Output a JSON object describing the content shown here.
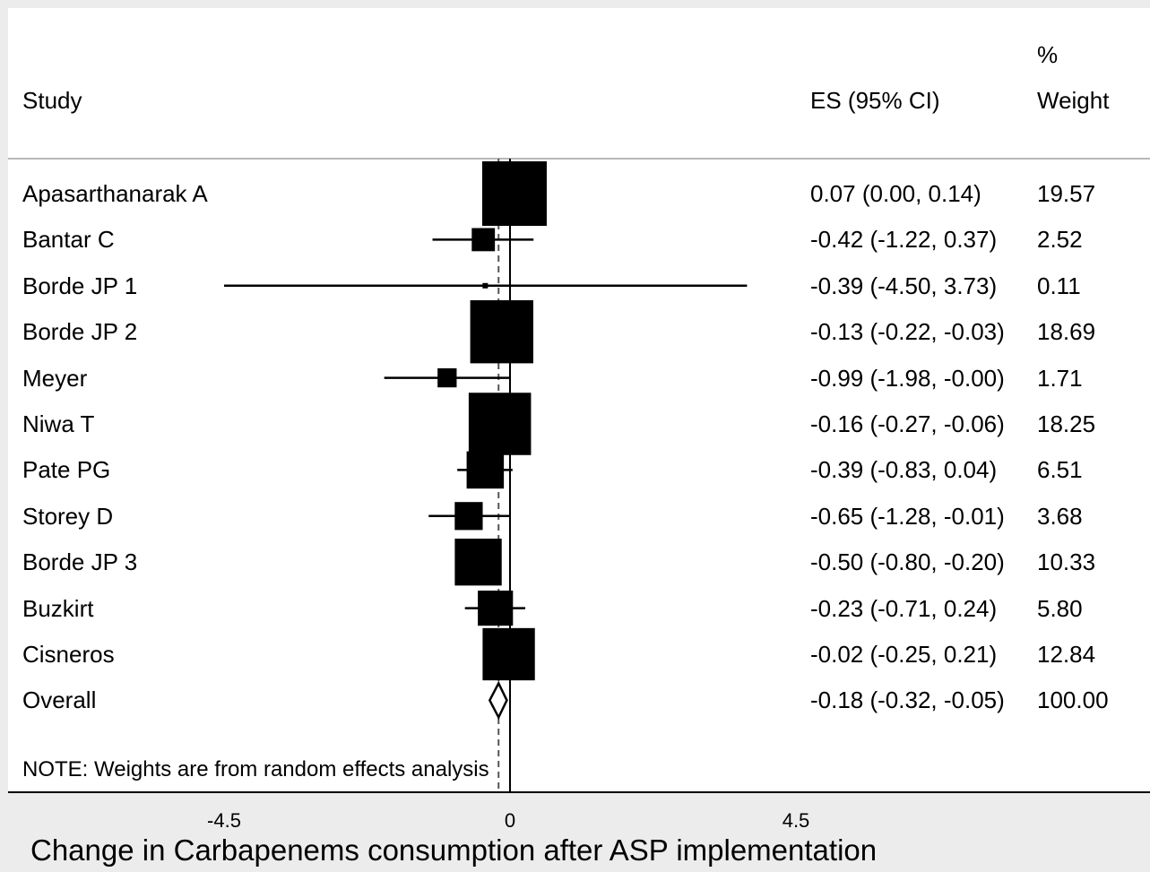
{
  "header": {
    "study": "Study",
    "es": "ES (95% CI)",
    "weight_pct": "%",
    "weight": "Weight"
  },
  "note": "NOTE: Weights are from random effects analysis",
  "x_title": "Change in Carbapenems consumption after ASP implementation",
  "chart_data": {
    "type": "forest",
    "x_ticks": [
      "-4.5",
      "0",
      "4.5"
    ],
    "x_tick_values": [
      -4.5,
      0,
      4.5
    ],
    "reference_line": 0,
    "overall_line": -0.18,
    "studies": [
      {
        "name": "Apasarthanarak A",
        "es": 0.07,
        "lo": 0.0,
        "hi": 0.14,
        "weight": 19.57,
        "es_text": "0.07 (0.00, 0.14)",
        "weight_text": "19.57"
      },
      {
        "name": "Bantar C",
        "es": -0.42,
        "lo": -1.22,
        "hi": 0.37,
        "weight": 2.52,
        "es_text": "-0.42 (-1.22, 0.37)",
        "weight_text": "2.52"
      },
      {
        "name": "Borde JP 1",
        "es": -0.39,
        "lo": -4.5,
        "hi": 3.73,
        "weight": 0.11,
        "es_text": "-0.39 (-4.50, 3.73)",
        "weight_text": "0.11"
      },
      {
        "name": "Borde JP 2",
        "es": -0.13,
        "lo": -0.22,
        "hi": -0.03,
        "weight": 18.69,
        "es_text": "-0.13 (-0.22, -0.03)",
        "weight_text": "18.69"
      },
      {
        "name": "Meyer",
        "es": -0.99,
        "lo": -1.98,
        "hi": -0.0,
        "weight": 1.71,
        "es_text": "-0.99 (-1.98, -0.00)",
        "weight_text": "1.71"
      },
      {
        "name": "Niwa T",
        "es": -0.16,
        "lo": -0.27,
        "hi": -0.06,
        "weight": 18.25,
        "es_text": "-0.16 (-0.27, -0.06)",
        "weight_text": "18.25"
      },
      {
        "name": "Pate PG",
        "es": -0.39,
        "lo": -0.83,
        "hi": 0.04,
        "weight": 6.51,
        "es_text": "-0.39 (-0.83, 0.04)",
        "weight_text": "6.51"
      },
      {
        "name": "Storey D",
        "es": -0.65,
        "lo": -1.28,
        "hi": -0.01,
        "weight": 3.68,
        "es_text": "-0.65 (-1.28, -0.01)",
        "weight_text": "3.68"
      },
      {
        "name": "Borde JP 3",
        "es": -0.5,
        "lo": -0.8,
        "hi": -0.2,
        "weight": 10.33,
        "es_text": "-0.50 (-0.80, -0.20)",
        "weight_text": "10.33"
      },
      {
        "name": "Buzkirt",
        "es": -0.23,
        "lo": -0.71,
        "hi": 0.24,
        "weight": 5.8,
        "es_text": "-0.23 (-0.71, 0.24)",
        "weight_text": "5.80"
      },
      {
        "name": "Cisneros",
        "es": -0.02,
        "lo": -0.25,
        "hi": 0.21,
        "weight": 12.84,
        "es_text": "-0.02 (-0.25, 0.21)",
        "weight_text": "12.84"
      }
    ],
    "overall": {
      "name": "Overall",
      "es": -0.18,
      "lo": -0.32,
      "hi": -0.05,
      "weight": 100.0,
      "es_text": "-0.18 (-0.32, -0.05)",
      "weight_text": "100.00"
    }
  }
}
